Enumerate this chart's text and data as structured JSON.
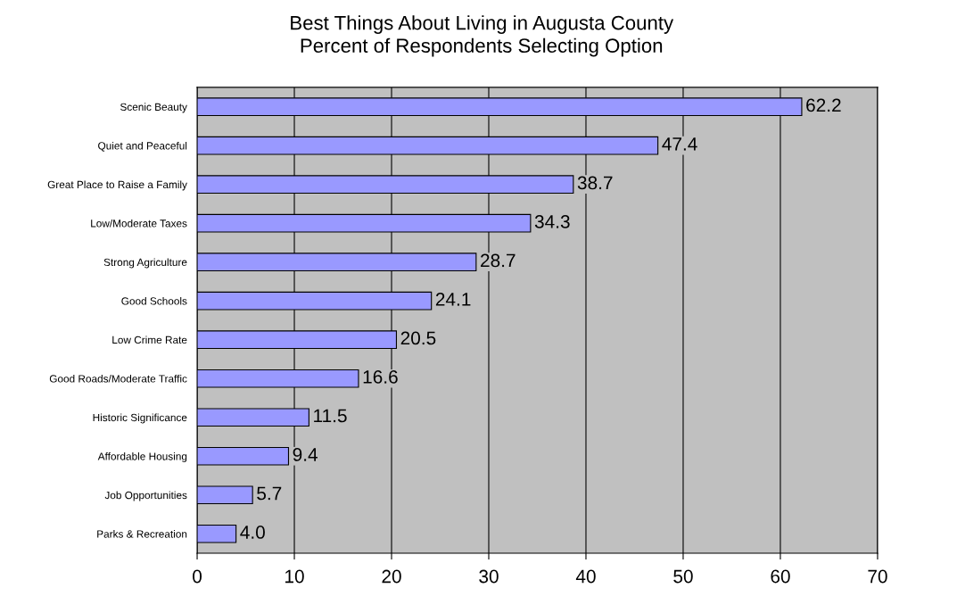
{
  "chart_data": {
    "type": "bar",
    "orientation": "horizontal",
    "title": "Best Things About Living in Augusta County\nPercent of Respondents Selecting Option",
    "categories": [
      "Scenic Beauty",
      "Quiet and Peaceful",
      "Great Place to Raise a Family",
      "Low/Moderate Taxes",
      "Strong Agriculture",
      "Good Schools",
      "Low Crime Rate",
      "Good Roads/Moderate Traffic",
      "Historic Significance",
      "Affordable Housing",
      "Job Opportunities",
      "Parks & Recreation"
    ],
    "values": [
      62.2,
      47.4,
      38.7,
      34.3,
      28.7,
      24.1,
      20.5,
      16.6,
      11.5,
      9.4,
      5.7,
      4.0
    ],
    "value_labels": [
      "62.2",
      "47.4",
      "38.7",
      "34.3",
      "28.7",
      "24.1",
      "20.5",
      "16.6",
      "11.5",
      "9.4",
      "5.7",
      "4.0"
    ],
    "color": "#9999ff",
    "xlim": [
      0,
      70
    ],
    "xticks": [
      0,
      10,
      20,
      30,
      40,
      50,
      60,
      70
    ],
    "grid": "x"
  }
}
